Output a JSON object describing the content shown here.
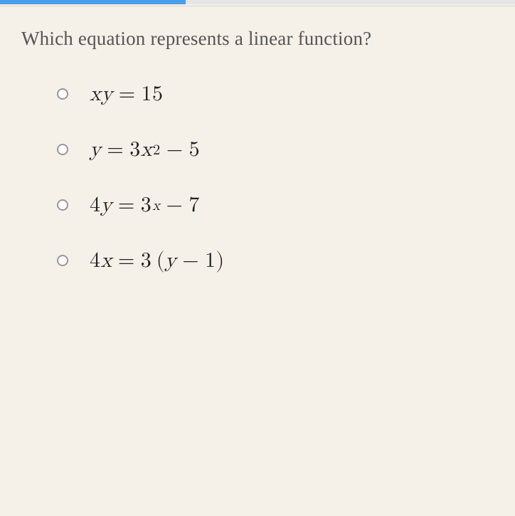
{
  "progress": {
    "percent": 36,
    "track_color": "#e5e5e5",
    "fill_color": "#4a9de8"
  },
  "question": {
    "text": "Which equation represents a linear function?",
    "color": "#555555",
    "fontsize": 27
  },
  "options": [
    {
      "id": "opt-a",
      "parts": [
        {
          "t": "x",
          "style": "var"
        },
        {
          "t": "y",
          "style": "var"
        },
        {
          "t": "=",
          "style": "op"
        },
        {
          "t": "15",
          "style": "num"
        }
      ]
    },
    {
      "id": "opt-b",
      "parts": [
        {
          "t": "y",
          "style": "var"
        },
        {
          "t": "=",
          "style": "op"
        },
        {
          "t": "3",
          "style": "num"
        },
        {
          "t": "x",
          "style": "var"
        },
        {
          "t": "2",
          "style": "sup"
        },
        {
          "t": "−",
          "style": "op"
        },
        {
          "t": "5",
          "style": "num"
        }
      ]
    },
    {
      "id": "opt-c",
      "parts": [
        {
          "t": "4",
          "style": "num"
        },
        {
          "t": "y",
          "style": "var"
        },
        {
          "t": "=",
          "style": "op"
        },
        {
          "t": "3",
          "style": "num"
        },
        {
          "t": "x",
          "style": "supv"
        },
        {
          "t": "−",
          "style": "op"
        },
        {
          "t": "7",
          "style": "num"
        }
      ]
    },
    {
      "id": "opt-d",
      "parts": [
        {
          "t": "4",
          "style": "num"
        },
        {
          "t": "x",
          "style": "var"
        },
        {
          "t": "=",
          "style": "op"
        },
        {
          "t": "3",
          "style": "num"
        },
        {
          "t": " (",
          "style": "num"
        },
        {
          "t": "y",
          "style": "var"
        },
        {
          "t": "−",
          "style": "op"
        },
        {
          "t": "1",
          "style": "num"
        },
        {
          "t": ")",
          "style": "num"
        }
      ]
    }
  ],
  "style": {
    "radio_border": "#999999",
    "eq_color": "#222222",
    "eq_fontsize": 30,
    "background_color": "#f5f0e8",
    "option_spacing": 42
  }
}
